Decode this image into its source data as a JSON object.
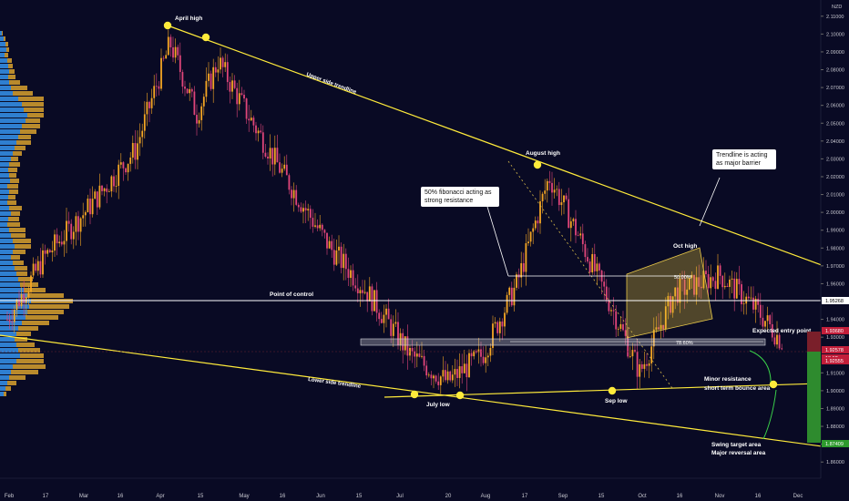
{
  "chart_data": {
    "type": "candlestick",
    "currency": "NZD",
    "x_tick_labels": [
      "Feb",
      "17",
      "Mar",
      "16",
      "Apr",
      "15",
      "May",
      "16",
      "Jun",
      "15",
      "Jul",
      "20",
      "Aug",
      "17",
      "Sep",
      "15",
      "Oct",
      "16",
      "Nov",
      "16",
      "Dec"
    ],
    "y_ticks": [
      "2.11000",
      "2.10000",
      "2.09000",
      "2.08000",
      "2.07000",
      "2.06000",
      "2.05000",
      "2.04000",
      "2.03000",
      "2.02000",
      "2.01000",
      "2.00000",
      "1.99000",
      "1.98000",
      "1.97000",
      "1.96000",
      "1.94000",
      "1.93000",
      "1.91000",
      "1.90000",
      "1.89000",
      "1.88000",
      "1.87000",
      "1.86000"
    ],
    "ylim": [
      1.855,
      2.115
    ],
    "price_labels": {
      "point_of_control": "1.95268",
      "entry": "1.93680",
      "current": "1.92578",
      "countdown": "13:52",
      "lower": "1.92555",
      "target": "1.87409"
    },
    "price_path": [
      [
        "2024-02-01",
        1.94
      ],
      [
        "2024-02-15",
        1.975
      ],
      [
        "2024-03-01",
        2.0
      ],
      [
        "2024-03-20",
        2.035
      ],
      [
        "2024-04-02",
        2.095
      ],
      [
        "2024-04-12",
        2.055
      ],
      [
        "2024-04-20",
        2.085
      ],
      [
        "2024-05-01",
        2.055
      ],
      [
        "2024-05-15",
        2.02
      ],
      [
        "2024-06-01",
        1.98
      ],
      [
        "2024-06-15",
        1.955
      ],
      [
        "2024-07-01",
        1.92
      ],
      [
        "2024-07-15",
        1.905
      ],
      [
        "2024-07-28",
        1.92
      ],
      [
        "2024-08-10",
        1.96
      ],
      [
        "2024-08-22",
        2.02
      ],
      [
        "2024-09-01",
        1.99
      ],
      [
        "2024-09-15",
        1.945
      ],
      [
        "2024-09-25",
        1.91
      ],
      [
        "2024-10-08",
        1.955
      ],
      [
        "2024-10-25",
        1.965
      ],
      [
        "2024-11-08",
        1.945
      ],
      [
        "2024-11-18",
        1.926
      ]
    ],
    "annotations": {
      "april_high": "April high",
      "august_high": "August high",
      "oct_high": "Oct high",
      "july_low": "July low",
      "sep_low": "Sep low",
      "upper_trendline": "Upper side trendline",
      "lower_trendline": "Lower side trendline",
      "point_of_control": "Point of control",
      "fib_50": "50.00%",
      "fib_786": "78.60%",
      "fib_callout": "50% fibonacci acting as strong resistance",
      "trendline_callout": "Trendline is acting as major barrier",
      "expected_entry": "Expected entry point",
      "minor_resistance": "Minor resistance",
      "short_term_bounce": "short term bounce area",
      "swing_target": "Swing target area",
      "major_reversal": "Major reversal area"
    },
    "colors": {
      "background": "#090a24",
      "trendline": "#ffeb3b",
      "candle_up": "#f5a623",
      "candle_down": "#e0457a",
      "volume_blue": "#2f7fd0",
      "volume_gold": "#b98a2c",
      "poc_line": "#ffffff",
      "take_profit": "#2e8b2e",
      "stop_loss": "#7a1f2a"
    }
  }
}
